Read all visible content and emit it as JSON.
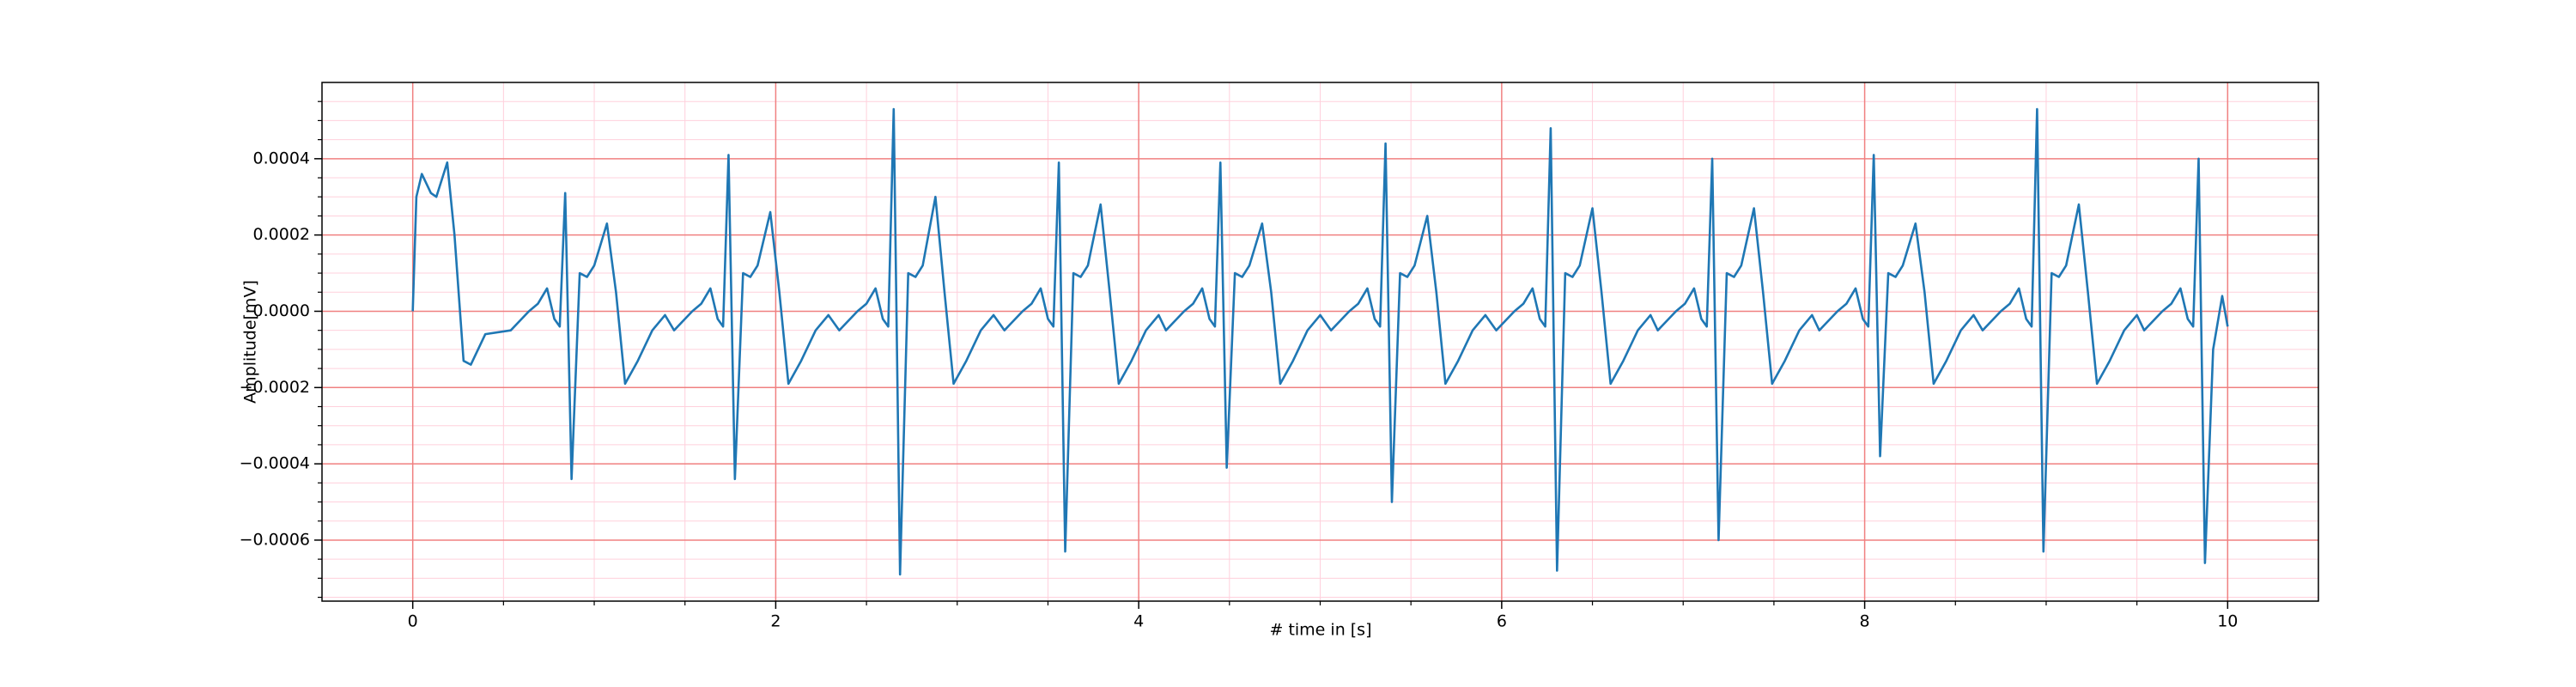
{
  "chart_data": {
    "type": "line",
    "xlabel": "# time in [s]",
    "ylabel": "Amplitude[mV]",
    "color": "#1f77b4",
    "grid": true,
    "major_grid_color": "#f08080",
    "minor_grid_color": "#ffd0dc",
    "xlim": [
      -0.5,
      10.5
    ],
    "ylim": [
      -0.00076,
      0.0006
    ],
    "xticks": [
      0,
      2,
      4,
      6,
      8,
      10
    ],
    "yticks": [
      {
        "value": -0.0006,
        "label": "−0.0006"
      },
      {
        "value": -0.0004,
        "label": "−0.0004"
      },
      {
        "value": -0.0002,
        "label": "−0.0002"
      },
      {
        "value": 0,
        "label": "0.0000"
      },
      {
        "value": 0.0002,
        "label": "0.0002"
      },
      {
        "value": 0.0004,
        "label": "0.0004"
      }
    ],
    "xminorticks": [
      0.5,
      1,
      1.5,
      2.5,
      3,
      3.5,
      4.5,
      5,
      5.5,
      6.5,
      7,
      7.5,
      8.5,
      9,
      9.5
    ],
    "yminorticks": [
      0.00055,
      0.0005,
      0.00045,
      0.00035,
      0.0003,
      0.00025,
      0.00015,
      0.0001,
      5e-05,
      -5e-05,
      -0.0001,
      -0.00015,
      -0.00025,
      -0.0003,
      -0.00035,
      -0.00045,
      -0.0005,
      -0.00055,
      -0.00065,
      -0.0007,
      -0.00075
    ],
    "x": [
      0,
      0.02,
      0.05,
      0.1,
      0.13,
      0.19,
      0.23,
      0.28,
      0.32,
      0.4,
      0.54,
      0.64,
      0.69,
      0.74,
      0.78,
      0.81,
      0.84,
      0.875,
      0.92,
      0.96,
      1.0,
      1.07,
      1.12,
      1.17,
      1.24,
      1.32,
      1.39,
      1.44,
      1.54,
      1.59,
      1.64,
      1.68,
      1.71,
      1.74,
      1.775,
      1.82,
      1.86,
      1.9,
      1.97,
      2.02,
      2.07,
      2.14,
      2.22,
      2.29,
      2.35,
      2.45,
      2.5,
      2.55,
      2.59,
      2.62,
      2.65,
      2.685,
      2.73,
      2.77,
      2.81,
      2.88,
      2.93,
      2.98,
      3.05,
      3.13,
      3.2,
      3.26,
      3.36,
      3.41,
      3.46,
      3.5,
      3.53,
      3.56,
      3.595,
      3.64,
      3.68,
      3.72,
      3.79,
      3.84,
      3.89,
      3.96,
      4.04,
      4.11,
      4.15,
      4.25,
      4.3,
      4.35,
      4.39,
      4.42,
      4.45,
      4.485,
      4.53,
      4.57,
      4.61,
      4.68,
      4.73,
      4.78,
      4.85,
      4.93,
      5.0,
      5.06,
      5.16,
      5.21,
      5.26,
      5.3,
      5.33,
      5.36,
      5.395,
      5.44,
      5.48,
      5.52,
      5.59,
      5.64,
      5.69,
      5.76,
      5.84,
      5.91,
      5.97,
      6.07,
      6.12,
      6.17,
      6.21,
      6.24,
      6.27,
      6.305,
      6.35,
      6.39,
      6.43,
      6.5,
      6.55,
      6.6,
      6.67,
      6.75,
      6.82,
      6.86,
      6.96,
      7.01,
      7.06,
      7.1,
      7.13,
      7.16,
      7.195,
      7.24,
      7.28,
      7.32,
      7.39,
      7.44,
      7.49,
      7.56,
      7.64,
      7.71,
      7.75,
      7.85,
      7.9,
      7.95,
      7.99,
      8.02,
      8.05,
      8.085,
      8.13,
      8.17,
      8.21,
      8.28,
      8.33,
      8.38,
      8.45,
      8.53,
      8.6,
      8.65,
      8.75,
      8.8,
      8.85,
      8.89,
      8.92,
      8.95,
      8.985,
      9.03,
      9.07,
      9.11,
      9.18,
      9.23,
      9.28,
      9.35,
      9.43,
      9.5,
      9.54,
      9.64,
      9.69,
      9.74,
      9.78,
      9.81,
      9.84,
      9.875,
      9.92,
      9.97,
      10.0
    ],
    "values": [
      0,
      0.0003,
      0.00036,
      0.00031,
      0.0003,
      0.00039,
      0.0002,
      -0.00013,
      -0.00014,
      -6e-05,
      -5e-05,
      0,
      2e-05,
      6e-05,
      -2e-05,
      -4e-05,
      0.00031,
      -0.00044,
      0.0001,
      9e-05,
      0.00012,
      0.00023,
      5e-05,
      -0.00019,
      -0.00013,
      -5e-05,
      -1e-05,
      -5e-05,
      0,
      2e-05,
      6e-05,
      -2e-05,
      -4e-05,
      0.00041,
      -0.00044,
      0.0001,
      9e-05,
      0.00012,
      0.00026,
      5e-05,
      -0.00019,
      -0.00013,
      -5e-05,
      -1e-05,
      -5e-05,
      0,
      2e-05,
      6e-05,
      -2e-05,
      -4e-05,
      0.00053,
      -0.00069,
      0.0001,
      9e-05,
      0.00012,
      0.0003,
      5e-05,
      -0.00019,
      -0.00013,
      -5e-05,
      -1e-05,
      -5e-05,
      0,
      2e-05,
      6e-05,
      -2e-05,
      -4e-05,
      0.00039,
      -0.00063,
      0.0001,
      9e-05,
      0.00012,
      0.00028,
      5e-05,
      -0.00019,
      -0.00013,
      -5e-05,
      -1e-05,
      -5e-05,
      0,
      2e-05,
      6e-05,
      -2e-05,
      -4e-05,
      0.00039,
      -0.00041,
      0.0001,
      9e-05,
      0.00012,
      0.00023,
      5e-05,
      -0.00019,
      -0.00013,
      -5e-05,
      -1e-05,
      -5e-05,
      0,
      2e-05,
      6e-05,
      -2e-05,
      -4e-05,
      0.00044,
      -0.0005,
      0.0001,
      9e-05,
      0.00012,
      0.00025,
      5e-05,
      -0.00019,
      -0.00013,
      -5e-05,
      -1e-05,
      -5e-05,
      0,
      2e-05,
      6e-05,
      -2e-05,
      -4e-05,
      0.00048,
      -0.00068,
      0.0001,
      9e-05,
      0.00012,
      0.00027,
      5e-05,
      -0.00019,
      -0.00013,
      -5e-05,
      -1e-05,
      -5e-05,
      0,
      2e-05,
      6e-05,
      -2e-05,
      -4e-05,
      0.0004,
      -0.0006,
      0.0001,
      9e-05,
      0.00012,
      0.00027,
      5e-05,
      -0.00019,
      -0.00013,
      -5e-05,
      -1e-05,
      -5e-05,
      0,
      2e-05,
      6e-05,
      -2e-05,
      -4e-05,
      0.00041,
      -0.00038,
      0.0001,
      9e-05,
      0.00012,
      0.00023,
      5e-05,
      -0.00019,
      -0.00013,
      -5e-05,
      -1e-05,
      -5e-05,
      0,
      2e-05,
      6e-05,
      -2e-05,
      -4e-05,
      0.00053,
      -0.00063,
      0.0001,
      9e-05,
      0.00012,
      0.00028,
      5e-05,
      -0.00019,
      -0.00013,
      -5e-05,
      -1e-05,
      -5e-05,
      0,
      2e-05,
      6e-05,
      -2e-05,
      -4e-05,
      0.0004,
      -0.00066,
      -0.0001,
      4e-05,
      -4e-05
    ]
  }
}
